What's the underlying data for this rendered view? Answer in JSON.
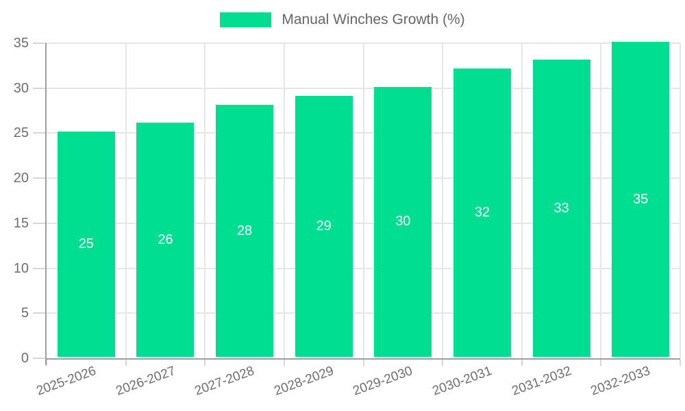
{
  "legend": {
    "label": "Manual Winches Growth (%)",
    "position": "top"
  },
  "colors": {
    "bar": "#00DE91",
    "grid": "#E6E6E6",
    "axis": "#9E9E9E",
    "tick": "#D6D6D6",
    "tick_label_text": "#6E6E6E",
    "legend_text": "#666666",
    "value_label_text": "#FFFFFF",
    "background": "#FFFFFF"
  },
  "chart_data": {
    "type": "bar",
    "title": "Manual Winches Growth (%)",
    "categories": [
      "2025-2026",
      "2026-2027",
      "2027-2028",
      "2028-2029",
      "2029-2030",
      "2030-2031",
      "2031-2032",
      "2032-2033"
    ],
    "values": [
      25,
      26,
      28,
      29,
      30,
      32,
      33,
      35
    ],
    "series": [
      {
        "name": "Manual Winches Growth (%)",
        "values": [
          25,
          26,
          28,
          29,
          30,
          32,
          33,
          35
        ]
      }
    ],
    "xlabel": "",
    "ylabel": "",
    "ylim": [
      0,
      35
    ],
    "yticks": [
      0,
      5,
      10,
      15,
      20,
      25,
      30,
      35
    ],
    "grid": true,
    "legend_position": "top",
    "bar_value_labels": true
  }
}
